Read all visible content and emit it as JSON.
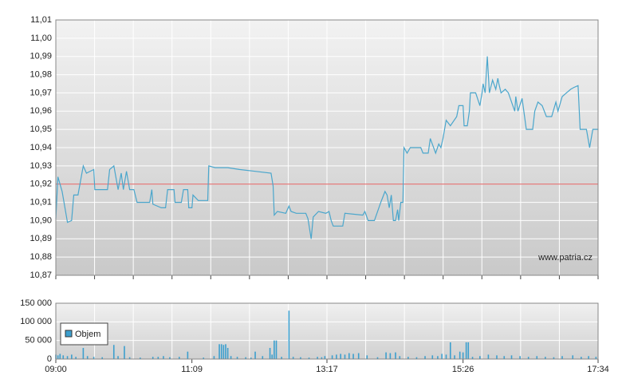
{
  "chart_data": [
    {
      "type": "line",
      "color": "#4aa6cc",
      "annotation": "www.patria.cz",
      "reference_line": 10.92,
      "reference_color": "#e05a5a",
      "xlim": [
        0,
        514
      ],
      "ylim": [
        10.87,
        11.01
      ],
      "yticks": [
        {
          "value": 10.87,
          "label": "10,87"
        },
        {
          "value": 10.88,
          "label": "10,88"
        },
        {
          "value": 10.89,
          "label": "10,89"
        },
        {
          "value": 10.9,
          "label": "10,90"
        },
        {
          "value": 10.91,
          "label": "10,91"
        },
        {
          "value": 10.92,
          "label": "10,92"
        },
        {
          "value": 10.93,
          "label": "10,93"
        },
        {
          "value": 10.94,
          "label": "10,94"
        },
        {
          "value": 10.95,
          "label": "10,95"
        },
        {
          "value": 10.96,
          "label": "10,96"
        },
        {
          "value": 10.97,
          "label": "10,97"
        },
        {
          "value": 10.98,
          "label": "10,98"
        },
        {
          "value": 10.99,
          "label": "10,99"
        },
        {
          "value": 11.0,
          "label": "11,00"
        },
        {
          "value": 11.01,
          "label": "11,01"
        }
      ],
      "x": [
        0,
        2,
        6,
        11,
        15,
        17,
        21,
        26,
        29,
        36,
        37,
        49,
        51,
        55,
        59,
        62,
        64,
        67,
        70,
        74,
        77,
        89,
        91,
        92,
        100,
        104,
        106,
        112,
        113,
        119,
        121,
        125,
        126,
        129,
        130,
        135,
        144,
        145,
        151,
        163,
        174,
        189,
        204,
        206,
        207,
        210,
        218,
        221,
        223,
        228,
        237,
        239,
        242,
        244,
        249,
        256,
        259,
        261,
        263,
        272,
        274,
        291,
        293,
        296,
        302,
        308,
        312,
        314,
        316,
        318,
        320,
        322,
        324,
        325,
        327,
        329,
        330,
        333,
        336,
        346,
        348,
        353,
        355,
        360,
        363,
        365,
        367,
        370,
        374,
        380,
        382,
        386,
        387,
        390,
        392,
        393,
        398,
        402,
        404,
        405,
        407,
        409,
        411,
        414,
        417,
        419,
        420,
        422,
        426,
        429,
        432,
        435,
        436,
        438,
        442,
        446,
        452,
        454,
        457,
        461,
        465,
        470,
        474,
        476,
        480,
        484,
        488,
        491,
        495,
        497,
        503,
        506,
        509,
        514
      ],
      "values": [
        10.901,
        10.924,
        10.916,
        10.899,
        10.9,
        10.914,
        10.914,
        10.93,
        10.926,
        10.928,
        10.917,
        10.917,
        10.928,
        10.93,
        10.917,
        10.926,
        10.917,
        10.927,
        10.917,
        10.917,
        10.91,
        10.91,
        10.917,
        10.909,
        10.907,
        10.907,
        10.917,
        10.917,
        10.91,
        10.91,
        10.917,
        10.917,
        10.907,
        10.907,
        10.914,
        10.911,
        10.911,
        10.93,
        10.929,
        10.929,
        10.928,
        10.927,
        10.926,
        10.919,
        10.903,
        10.905,
        10.904,
        10.908,
        10.905,
        10.904,
        10.904,
        10.901,
        10.89,
        10.902,
        10.905,
        10.904,
        10.905,
        10.9,
        10.897,
        10.897,
        10.904,
        10.903,
        10.905,
        10.9,
        10.9,
        10.91,
        10.916,
        10.914,
        10.907,
        10.914,
        10.9,
        10.9,
        10.906,
        10.9,
        10.91,
        10.91,
        10.94,
        10.937,
        10.94,
        10.94,
        10.937,
        10.937,
        10.945,
        10.937,
        10.942,
        10.94,
        10.945,
        10.955,
        10.952,
        10.957,
        10.963,
        10.963,
        10.952,
        10.952,
        10.96,
        10.97,
        10.97,
        10.963,
        10.97,
        10.975,
        10.97,
        10.99,
        10.97,
        10.977,
        10.972,
        10.978,
        10.975,
        10.97,
        10.972,
        10.97,
        10.965,
        10.96,
        10.968,
        10.96,
        10.967,
        10.95,
        10.95,
        10.96,
        10.965,
        10.963,
        10.957,
        10.957,
        10.965,
        10.96,
        10.968,
        10.97,
        10.972,
        10.973,
        10.974,
        10.95,
        10.95,
        10.94,
        10.95,
        10.95
      ]
    },
    {
      "type": "bar",
      "xlim": [
        0,
        514
      ],
      "ylim": [
        0,
        150000
      ],
      "xticks": [
        {
          "value": 0,
          "label": "09:00"
        },
        {
          "value": 129,
          "label": "11:09"
        },
        {
          "value": 257,
          "label": "13:17"
        },
        {
          "value": 386,
          "label": "15:26"
        },
        {
          "value": 514,
          "label": "17:34"
        }
      ],
      "yticks": [
        0,
        {
          "value": 50000,
          "label": "50 000"
        },
        {
          "value": 100000,
          "label": "100 000"
        },
        {
          "value": 150000,
          "label": "150 000"
        }
      ],
      "x": [
        0,
        2,
        4,
        7,
        11,
        15,
        19,
        26,
        30,
        36,
        44,
        55,
        59,
        65,
        70,
        80,
        92,
        97,
        102,
        108,
        117,
        125,
        140,
        150,
        155,
        157,
        159,
        161,
        163,
        166,
        172,
        180,
        185,
        189,
        196,
        203,
        205,
        207,
        209,
        214,
        221,
        225,
        232,
        240,
        248,
        252,
        255,
        262,
        266,
        270,
        274,
        278,
        282,
        287,
        295,
        305,
        313,
        317,
        322,
        326,
        334,
        342,
        350,
        357,
        362,
        366,
        370,
        374,
        378,
        383,
        386,
        389,
        391,
        395,
        402,
        410,
        418,
        425,
        432,
        440,
        448,
        456,
        464,
        472,
        480,
        490,
        498,
        505,
        512
      ],
      "series": [
        {
          "name": "Objem",
          "color": "#3c9fce",
          "values": [
            12000,
            10000,
            14000,
            10000,
            8000,
            12000,
            6000,
            30000,
            8000,
            6000,
            5000,
            38000,
            8000,
            35000,
            5000,
            4000,
            6000,
            6000,
            8000,
            5000,
            6000,
            20000,
            4000,
            8000,
            40000,
            40000,
            38000,
            40000,
            30000,
            8000,
            6000,
            5000,
            4000,
            20000,
            8000,
            30000,
            12000,
            50000,
            50000,
            6000,
            130000,
            6000,
            5000,
            4000,
            6000,
            5000,
            8000,
            10000,
            12000,
            14000,
            12000,
            16000,
            14000,
            16000,
            10000,
            5000,
            18000,
            16000,
            18000,
            8000,
            6000,
            5000,
            8000,
            10000,
            8000,
            14000,
            12000,
            45000,
            10000,
            20000,
            18000,
            45000,
            45000,
            6000,
            8000,
            12000,
            10000,
            8000,
            10000,
            8000,
            6000,
            8000,
            6000,
            5000,
            8000,
            10000,
            6000,
            8000,
            6000
          ]
        }
      ]
    }
  ]
}
